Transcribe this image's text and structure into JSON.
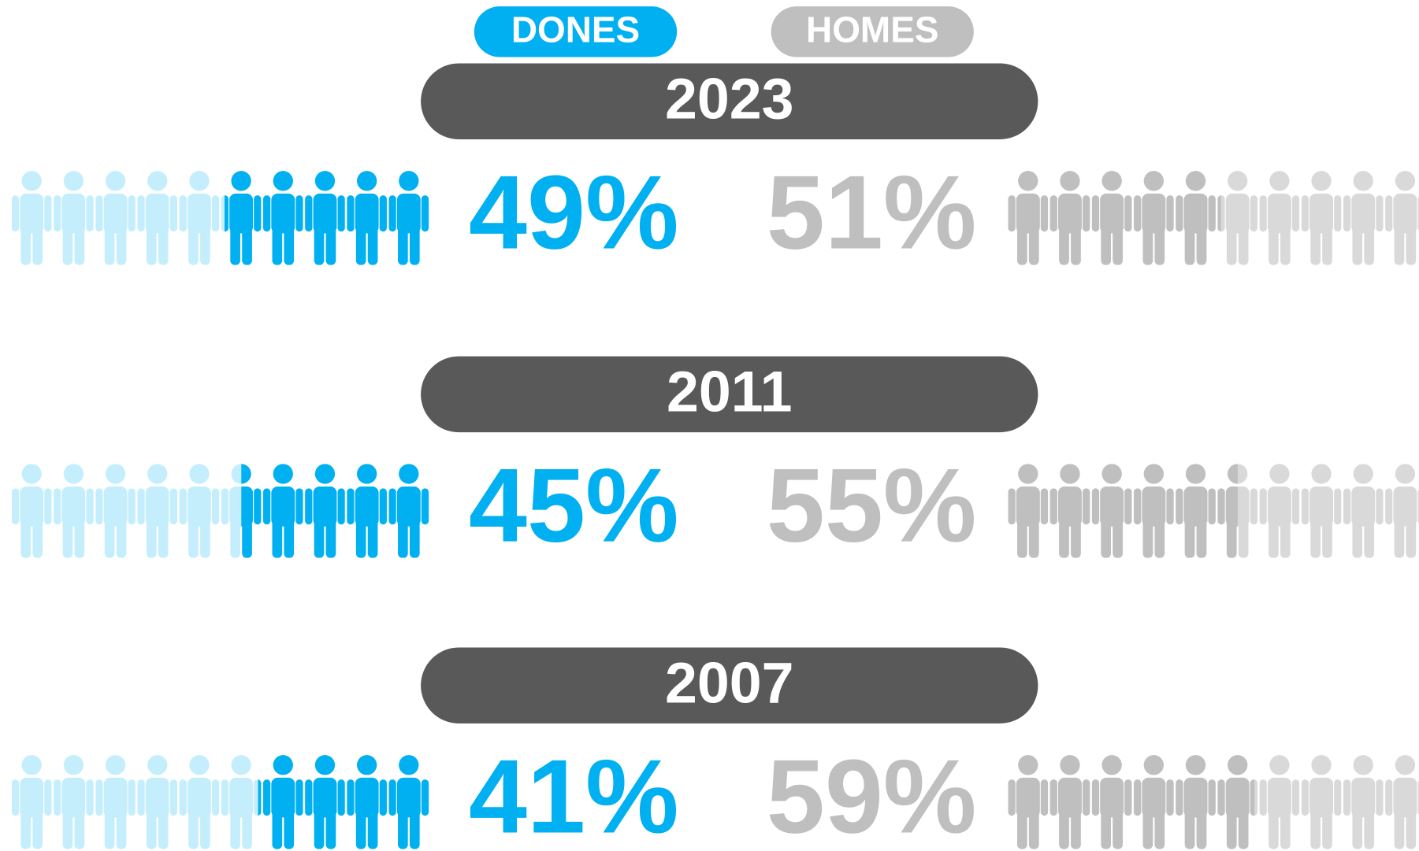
{
  "chart_data": {
    "type": "pictogram",
    "categories": [
      "2023",
      "2011",
      "2007"
    ],
    "xlim": [
      0,
      100
    ],
    "series": [
      {
        "name": "DONES",
        "color": "#00b0f0",
        "light_color": "#c5eefc",
        "values": [
          49,
          45,
          41
        ],
        "value_labels": [
          "49%",
          "45%",
          "41%"
        ]
      },
      {
        "name": "HOMES",
        "color": "#bfbfbf",
        "light_color": "#d9d9d9",
        "values": [
          51,
          55,
          59
        ],
        "value_labels": [
          "51%",
          "55%",
          "59%"
        ]
      }
    ]
  }
}
